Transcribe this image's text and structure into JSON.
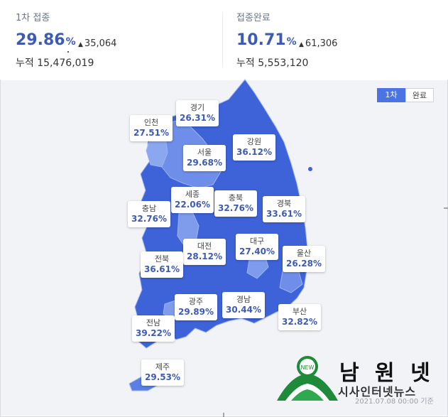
{
  "stats": {
    "first": {
      "label": "1차 접종",
      "percent": "29.86",
      "percent_sign": "%",
      "delta": "35,064",
      "total": "누적 15,476,019"
    },
    "complete": {
      "label": "접종완료",
      "percent": "10.71",
      "percent_sign": "%",
      "delta": "61,306",
      "total": "누적 5,553,120"
    }
  },
  "toggles": {
    "first": "1차",
    "complete": "완료"
  },
  "icons": {
    "up": "triangle-up-icon"
  },
  "colors": {
    "accent": "#3d5bb5",
    "map_fill": "#3e63d8",
    "map_light": "#7899ee",
    "toggle_active": "#4a73e3"
  },
  "regions": [
    {
      "id": "incheon",
      "name": "인천",
      "value": "27.51%"
    },
    {
      "id": "gyeonggi",
      "name": "경기",
      "value": "26.31%"
    },
    {
      "id": "seoul",
      "name": "서울",
      "value": "29.68%"
    },
    {
      "id": "gangwon",
      "name": "강원",
      "value": "36.12%"
    },
    {
      "id": "sejong",
      "name": "세종",
      "value": "22.06%"
    },
    {
      "id": "chungbuk",
      "name": "충북",
      "value": "32.76%"
    },
    {
      "id": "gyeongbuk",
      "name": "경북",
      "value": "33.61%"
    },
    {
      "id": "chungnam",
      "name": "충남",
      "value": "32.76%"
    },
    {
      "id": "daejeon",
      "name": "대전",
      "value": "28.12%"
    },
    {
      "id": "daegu",
      "name": "대구",
      "value": "27.40%"
    },
    {
      "id": "ulsan",
      "name": "울산",
      "value": "26.28%"
    },
    {
      "id": "jeonbuk",
      "name": "전북",
      "value": "36.61%"
    },
    {
      "id": "gwangju",
      "name": "광주",
      "value": "29.89%"
    },
    {
      "id": "gyeongnam",
      "name": "경남",
      "value": "30.44%"
    },
    {
      "id": "busan",
      "name": "부산",
      "value": "32.82%"
    },
    {
      "id": "jeonnam",
      "name": "전남",
      "value": "39.22%"
    },
    {
      "id": "jeju",
      "name": "제주",
      "value": "29.53%"
    }
  ],
  "logo": {
    "title": "남 원 넷",
    "subtitle": "시사인터넷뉴스",
    "emblem_text": "NEW"
  },
  "footer": {
    "timestamp": "2021.07.08 00:00 기준"
  }
}
